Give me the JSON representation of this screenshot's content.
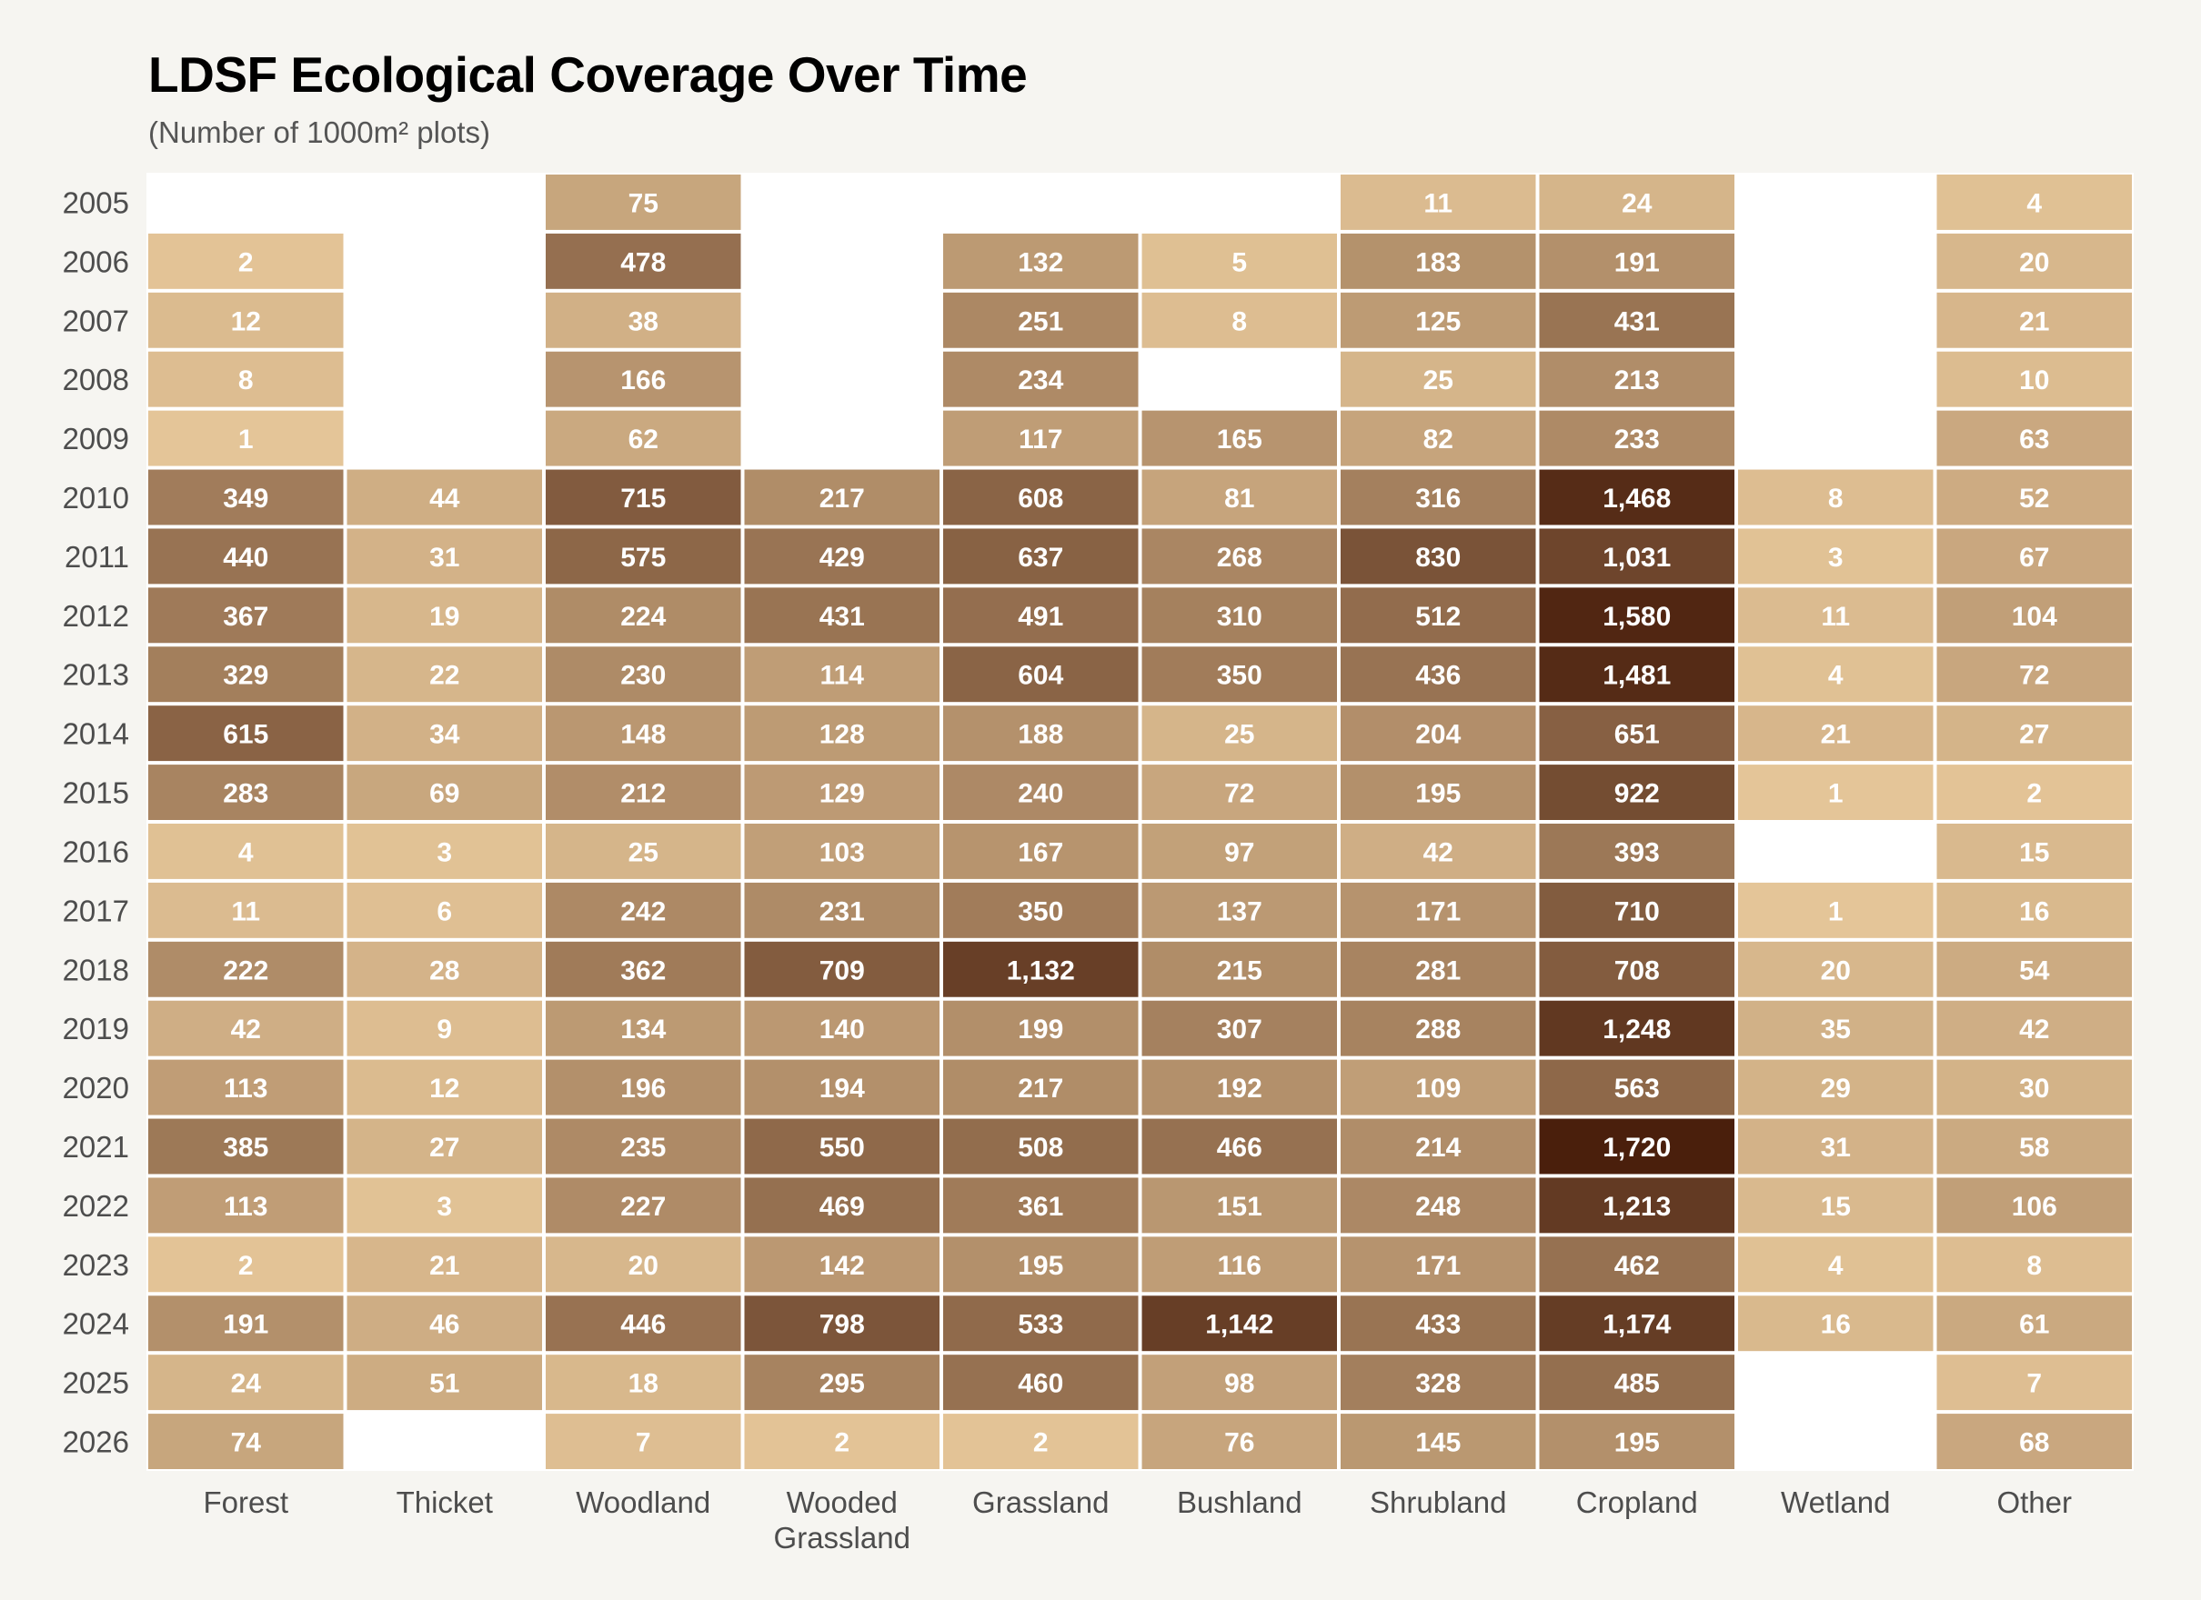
{
  "chart_data": {
    "type": "heatmap",
    "title": "LDSF Ecological Coverage Over Time",
    "subtitle": "(Number of 1000m² plots)",
    "xlabel": "",
    "ylabel": "",
    "x_categories": [
      "Forest",
      "Thicket",
      "Woodland",
      "Wooded Grassland",
      "Grassland",
      "Bushland",
      "Shrubland",
      "Cropland",
      "Wetland",
      "Other"
    ],
    "y_categories": [
      "2005",
      "2006",
      "2007",
      "2008",
      "2009",
      "2010",
      "2011",
      "2012",
      "2013",
      "2014",
      "2015",
      "2016",
      "2017",
      "2018",
      "2019",
      "2020",
      "2021",
      "2022",
      "2023",
      "2024",
      "2025",
      "2026"
    ],
    "values": [
      [
        null,
        null,
        75,
        null,
        null,
        null,
        11,
        24,
        null,
        4
      ],
      [
        2,
        null,
        478,
        null,
        132,
        5,
        183,
        191,
        null,
        20
      ],
      [
        12,
        null,
        38,
        null,
        251,
        8,
        125,
        431,
        null,
        21
      ],
      [
        8,
        null,
        166,
        null,
        234,
        null,
        25,
        213,
        null,
        10
      ],
      [
        1,
        null,
        62,
        null,
        117,
        165,
        82,
        233,
        null,
        63
      ],
      [
        349,
        44,
        715,
        217,
        608,
        81,
        316,
        1468,
        8,
        52
      ],
      [
        440,
        31,
        575,
        429,
        637,
        268,
        830,
        1031,
        3,
        67
      ],
      [
        367,
        19,
        224,
        431,
        491,
        310,
        512,
        1580,
        11,
        104
      ],
      [
        329,
        22,
        230,
        114,
        604,
        350,
        436,
        1481,
        4,
        72
      ],
      [
        615,
        34,
        148,
        128,
        188,
        25,
        204,
        651,
        21,
        27
      ],
      [
        283,
        69,
        212,
        129,
        240,
        72,
        195,
        922,
        1,
        2
      ],
      [
        4,
        3,
        25,
        103,
        167,
        97,
        42,
        393,
        null,
        15
      ],
      [
        11,
        6,
        242,
        231,
        350,
        137,
        171,
        710,
        1,
        16
      ],
      [
        222,
        28,
        362,
        709,
        1132,
        215,
        281,
        708,
        20,
        54
      ],
      [
        42,
        9,
        134,
        140,
        199,
        307,
        288,
        1248,
        35,
        42
      ],
      [
        113,
        12,
        196,
        194,
        217,
        192,
        109,
        563,
        29,
        30
      ],
      [
        385,
        27,
        235,
        550,
        508,
        466,
        214,
        1720,
        31,
        58
      ],
      [
        113,
        3,
        227,
        469,
        361,
        151,
        248,
        1213,
        15,
        106
      ],
      [
        2,
        21,
        20,
        142,
        195,
        116,
        171,
        462,
        4,
        8
      ],
      [
        191,
        46,
        446,
        798,
        533,
        1142,
        433,
        1174,
        16,
        61
      ],
      [
        24,
        51,
        18,
        295,
        460,
        98,
        328,
        485,
        null,
        7
      ],
      [
        74,
        null,
        7,
        2,
        2,
        76,
        145,
        195,
        null,
        68
      ]
    ],
    "color_scale": {
      "type": "sqrt",
      "low_color": "#e8c99b",
      "high_color": "#4a1f0c",
      "domain": [
        0,
        1720
      ],
      "missing_color": "#ffffff"
    },
    "label_format": "thousands-comma",
    "legend": "none",
    "grid": false
  },
  "colors": {
    "background": "#f6f5f1",
    "panel": "#ffffff",
    "label_text": "#4d4d4d",
    "value_text": "#ffffff"
  }
}
